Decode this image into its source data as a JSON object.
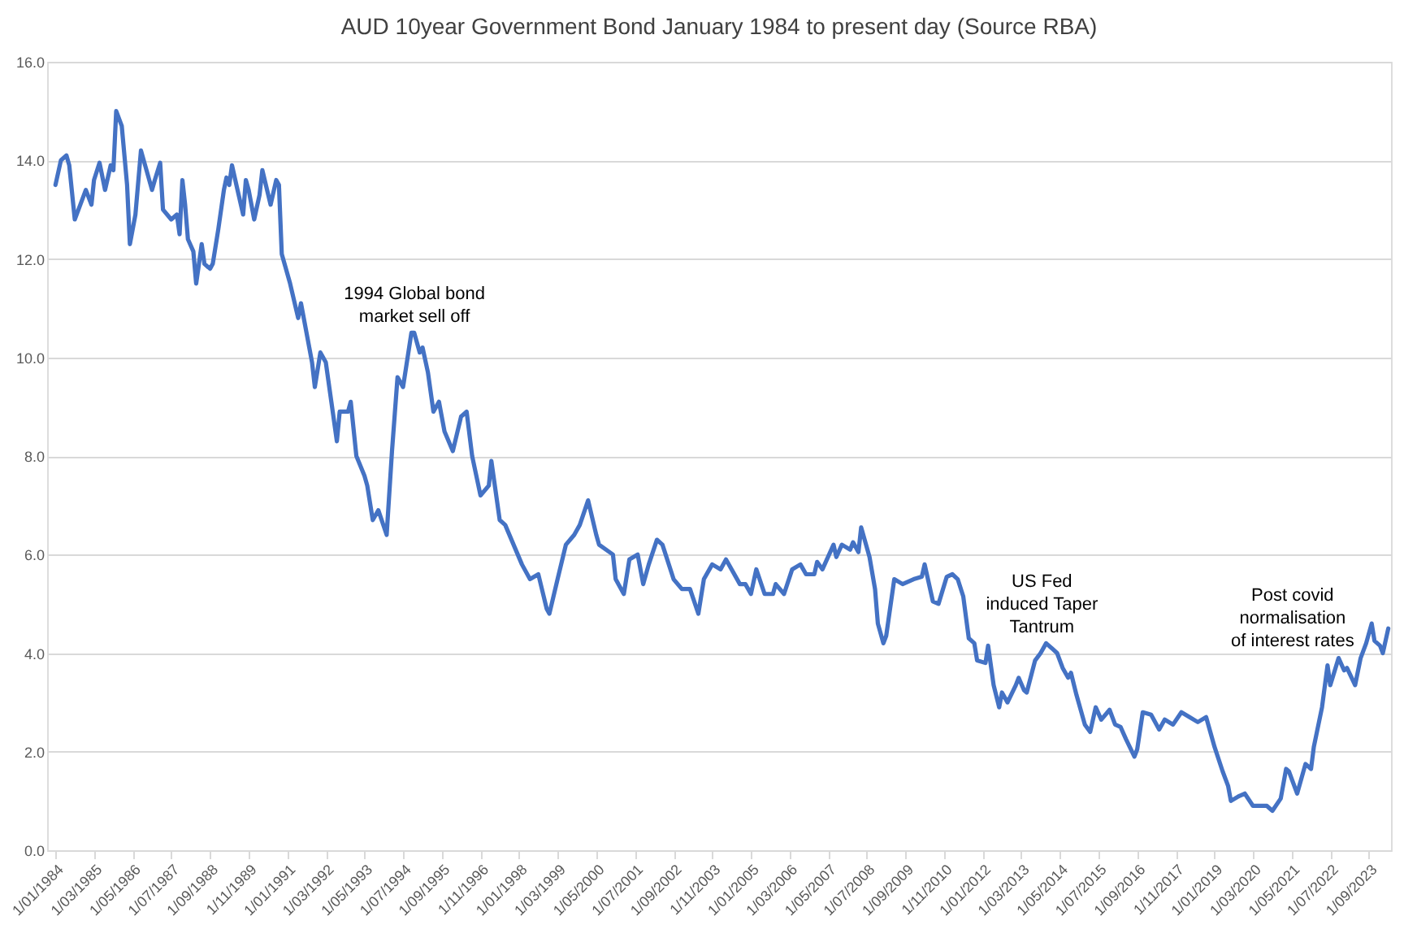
{
  "chart_data": {
    "type": "line",
    "title": "AUD 10year Government Bond January 1984 to present day (Source RBA)",
    "x": [
      "1984-01",
      "1984-03",
      "1984-05",
      "1984-06",
      "1984-08",
      "1984-10",
      "1984-12",
      "1985-02",
      "1985-03",
      "1985-05",
      "1985-07",
      "1985-09",
      "1985-10",
      "1985-11",
      "1986-01",
      "1986-03",
      "1986-04",
      "1986-06",
      "1986-08",
      "1986-10",
      "1986-12",
      "1987-01",
      "1987-03",
      "1987-04",
      "1987-07",
      "1987-09",
      "1987-10",
      "1987-11",
      "1987-12",
      "1988-01",
      "1988-03",
      "1988-04",
      "1988-06",
      "1988-07",
      "1988-09",
      "1988-10",
      "1988-12",
      "1989-02",
      "1989-03",
      "1989-04",
      "1989-05",
      "1989-07",
      "1989-09",
      "1989-10",
      "1989-11",
      "1990-01",
      "1990-03",
      "1990-04",
      "1990-07",
      "1990-09",
      "1990-10",
      "1990-11",
      "1991-02",
      "1991-05",
      "1991-06",
      "1991-10",
      "1991-11",
      "1992-01",
      "1992-03",
      "1992-05",
      "1992-07",
      "1992-08",
      "1992-11",
      "1992-12",
      "1993-02",
      "1993-05",
      "1993-06",
      "1993-08",
      "1993-10",
      "1994-01",
      "1994-03",
      "1994-05",
      "1994-07",
      "1994-10",
      "1994-11",
      "1995-01",
      "1995-02",
      "1995-04",
      "1995-06",
      "1995-08",
      "1995-10",
      "1996-01",
      "1996-04",
      "1996-06",
      "1996-08",
      "1996-11",
      "1997-02",
      "1997-03",
      "1997-06",
      "1997-08",
      "1997-11",
      "1998-02",
      "1998-05",
      "1998-08",
      "1998-11",
      "1998-12",
      "1999-03",
      "1999-06",
      "1999-09",
      "1999-11",
      "2000-02",
      "2000-05",
      "2000-06",
      "2000-11",
      "2000-12",
      "2001-03",
      "2001-05",
      "2001-08",
      "2001-10",
      "2001-12",
      "2002-03",
      "2002-05",
      "2002-09",
      "2002-12",
      "2003-03",
      "2003-06",
      "2003-08",
      "2003-11",
      "2004-02",
      "2004-04",
      "2004-09",
      "2004-11",
      "2005-01",
      "2005-03",
      "2005-06",
      "2005-09",
      "2005-10",
      "2006-01",
      "2006-04",
      "2006-07",
      "2006-09",
      "2006-12",
      "2007-01",
      "2007-03",
      "2007-07",
      "2007-08",
      "2007-10",
      "2008-01",
      "2008-02",
      "2008-04",
      "2008-05",
      "2008-08",
      "2008-10",
      "2008-11",
      "2009-01",
      "2009-02",
      "2009-05",
      "2009-08",
      "2009-12",
      "2010-03",
      "2010-04",
      "2010-07",
      "2010-09",
      "2010-12",
      "2011-02",
      "2011-04",
      "2011-06",
      "2011-08",
      "2011-10",
      "2011-11",
      "2012-02",
      "2012-03",
      "2012-05",
      "2012-07",
      "2012-08",
      "2012-10",
      "2013-01",
      "2013-02",
      "2013-04",
      "2013-05",
      "2013-08",
      "2013-10",
      "2013-12",
      "2014-02",
      "2014-04",
      "2014-06",
      "2014-08",
      "2014-09",
      "2014-11",
      "2015-02",
      "2015-04",
      "2015-06",
      "2015-08",
      "2015-11",
      "2016-01",
      "2016-03",
      "2016-05",
      "2016-08",
      "2016-09",
      "2016-11",
      "2017-02",
      "2017-05",
      "2017-07",
      "2017-10",
      "2018-01",
      "2018-04",
      "2018-07",
      "2018-10",
      "2019-01",
      "2019-04",
      "2019-06",
      "2019-07",
      "2019-10",
      "2019-12",
      "2020-03",
      "2020-08",
      "2020-10",
      "2021-01",
      "2021-03",
      "2021-04",
      "2021-07",
      "2021-10",
      "2021-12",
      "2022-01",
      "2022-04",
      "2022-06",
      "2022-07",
      "2022-10",
      "2022-12",
      "2023-01",
      "2023-04",
      "2023-06",
      "2023-08",
      "2023-10",
      "2023-11",
      "2024-01",
      "2024-02",
      "2024-04"
    ],
    "series": [
      {
        "color": "#4472c4",
        "values": [
          13.5,
          14.0,
          14.1,
          13.9,
          12.8,
          13.1,
          13.4,
          13.1,
          13.6,
          13.95,
          13.4,
          13.9,
          13.8,
          15.0,
          14.7,
          13.5,
          12.3,
          12.9,
          14.2,
          13.8,
          13.4,
          13.6,
          13.95,
          13.0,
          12.8,
          12.9,
          12.5,
          13.6,
          13.1,
          12.4,
          12.15,
          11.5,
          12.3,
          11.9,
          11.8,
          11.9,
          12.6,
          13.4,
          13.65,
          13.5,
          13.9,
          13.4,
          12.9,
          13.6,
          13.4,
          12.8,
          13.3,
          13.8,
          13.1,
          13.6,
          13.5,
          12.1,
          11.5,
          10.8,
          11.1,
          9.9,
          9.4,
          10.1,
          9.9,
          9.1,
          8.3,
          8.9,
          8.9,
          9.1,
          8.0,
          7.6,
          7.4,
          6.7,
          6.9,
          6.4,
          8.1,
          9.6,
          9.4,
          10.5,
          10.5,
          10.1,
          10.2,
          9.7,
          8.9,
          9.1,
          8.5,
          8.1,
          8.8,
          8.9,
          8.0,
          7.2,
          7.4,
          7.9,
          6.7,
          6.6,
          6.2,
          5.8,
          5.5,
          5.6,
          4.9,
          4.8,
          5.5,
          6.2,
          6.4,
          6.6,
          7.1,
          6.4,
          6.2,
          6.0,
          5.5,
          5.2,
          5.9,
          6.0,
          5.4,
          5.8,
          6.3,
          6.2,
          5.5,
          5.3,
          5.3,
          4.8,
          5.5,
          5.8,
          5.7,
          5.9,
          5.4,
          5.4,
          5.2,
          5.7,
          5.2,
          5.2,
          5.4,
          5.2,
          5.7,
          5.8,
          5.6,
          5.6,
          5.85,
          5.7,
          6.2,
          5.95,
          6.2,
          6.1,
          6.25,
          6.05,
          6.55,
          5.95,
          5.3,
          4.6,
          4.2,
          4.35,
          5.5,
          5.4,
          5.5,
          5.55,
          5.8,
          5.05,
          5.0,
          5.55,
          5.6,
          5.5,
          5.15,
          4.3,
          4.2,
          3.85,
          3.8,
          4.15,
          3.35,
          2.9,
          3.2,
          3.0,
          3.35,
          3.5,
          3.25,
          3.2,
          3.85,
          4.0,
          4.2,
          4.1,
          4.0,
          3.7,
          3.5,
          3.6,
          3.15,
          2.55,
          2.4,
          2.9,
          2.65,
          2.85,
          2.55,
          2.5,
          2.25,
          1.9,
          2.05,
          2.8,
          2.75,
          2.45,
          2.65,
          2.55,
          2.8,
          2.7,
          2.6,
          2.7,
          2.1,
          1.6,
          1.3,
          1.0,
          1.1,
          1.15,
          0.9,
          0.9,
          0.8,
          1.05,
          1.65,
          1.6,
          1.15,
          1.75,
          1.65,
          2.1,
          2.9,
          3.75,
          3.35,
          3.9,
          3.65,
          3.7,
          3.35,
          3.9,
          4.2,
          4.6,
          4.25,
          4.15,
          4.0,
          4.5
        ]
      }
    ],
    "xlim": [
      "1983-10",
      "2024-05"
    ],
    "xticks": [
      {
        "value": "1984-01",
        "label": "1/01/1984"
      },
      {
        "value": "1985-03",
        "label": "1/03/1985"
      },
      {
        "value": "1986-05",
        "label": "1/05/1986"
      },
      {
        "value": "1987-07",
        "label": "1/07/1987"
      },
      {
        "value": "1988-09",
        "label": "1/09/1988"
      },
      {
        "value": "1989-11",
        "label": "1/11/1989"
      },
      {
        "value": "1991-01",
        "label": "1/01/1991"
      },
      {
        "value": "1992-03",
        "label": "1/03/1992"
      },
      {
        "value": "1993-05",
        "label": "1/05/1993"
      },
      {
        "value": "1994-07",
        "label": "1/07/1994"
      },
      {
        "value": "1995-09",
        "label": "1/09/1995"
      },
      {
        "value": "1996-11",
        "label": "1/11/1996"
      },
      {
        "value": "1998-01",
        "label": "1/01/1998"
      },
      {
        "value": "1999-03",
        "label": "1/03/1999"
      },
      {
        "value": "2000-05",
        "label": "1/05/2000"
      },
      {
        "value": "2001-07",
        "label": "1/07/2001"
      },
      {
        "value": "2002-09",
        "label": "1/09/2002"
      },
      {
        "value": "2003-11",
        "label": "1/11/2003"
      },
      {
        "value": "2005-01",
        "label": "1/01/2005"
      },
      {
        "value": "2006-03",
        "label": "1/03/2006"
      },
      {
        "value": "2007-05",
        "label": "1/05/2007"
      },
      {
        "value": "2008-07",
        "label": "1/07/2008"
      },
      {
        "value": "2009-09",
        "label": "1/09/2009"
      },
      {
        "value": "2010-11",
        "label": "1/11/2010"
      },
      {
        "value": "2012-01",
        "label": "1/01/2012"
      },
      {
        "value": "2013-03",
        "label": "1/03/2013"
      },
      {
        "value": "2014-05",
        "label": "1/05/2014"
      },
      {
        "value": "2015-07",
        "label": "1/07/2015"
      },
      {
        "value": "2016-09",
        "label": "1/09/2016"
      },
      {
        "value": "2017-11",
        "label": "1/11/2017"
      },
      {
        "value": "2019-01",
        "label": "1/01/2019"
      },
      {
        "value": "2020-03",
        "label": "1/03/2020"
      },
      {
        "value": "2021-05",
        "label": "1/05/2021"
      },
      {
        "value": "2022-07",
        "label": "1/07/2022"
      },
      {
        "value": "2023-09",
        "label": "1/09/2023"
      }
    ],
    "ylim": [
      0,
      16
    ],
    "yticks": [
      {
        "value": 0,
        "label": "0.0"
      },
      {
        "value": 2,
        "label": "2.0"
      },
      {
        "value": 4,
        "label": "4.0"
      },
      {
        "value": 6,
        "label": "6.0"
      },
      {
        "value": 8,
        "label": "8.0"
      },
      {
        "value": 10,
        "label": "10.0"
      },
      {
        "value": 12,
        "label": "12.0"
      },
      {
        "value": 14,
        "label": "14.0"
      },
      {
        "value": 16,
        "label": "16.0"
      }
    ],
    "grid": "y",
    "marker": "none",
    "line_style": "solid",
    "annotations": [
      "1994 Global bond\nmarket sell off",
      "US Fed\ninduced  Taper\nTantrum",
      "Post covid\nnormalisation\nof interest rates"
    ]
  }
}
